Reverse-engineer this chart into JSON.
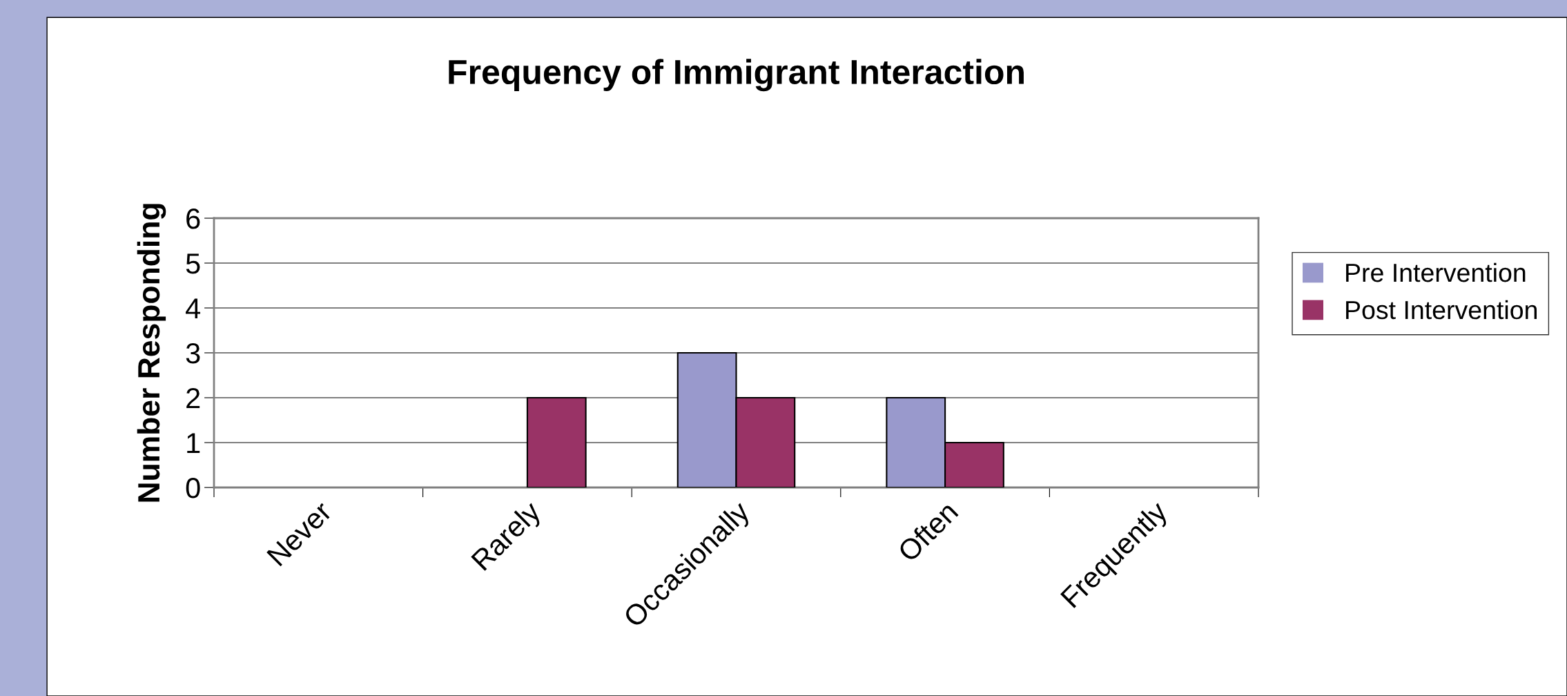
{
  "chart_data": {
    "type": "bar",
    "title": "Frequency of Immigrant Interaction",
    "ylabel": "Number Responding",
    "categories": [
      "Never",
      "Rarely",
      "Occasionally",
      "Often",
      "Frequently"
    ],
    "series": [
      {
        "name": "Pre Intervention",
        "color": "#9999cc",
        "values": [
          0,
          0,
          3,
          2,
          0
        ]
      },
      {
        "name": "Post Intervention",
        "color": "#993366",
        "values": [
          0,
          2,
          2,
          1,
          0
        ]
      }
    ],
    "ylim": [
      0,
      6
    ],
    "yticks": [
      0,
      1,
      2,
      3,
      4,
      5,
      6
    ],
    "grid": "y",
    "legend": "right"
  }
}
